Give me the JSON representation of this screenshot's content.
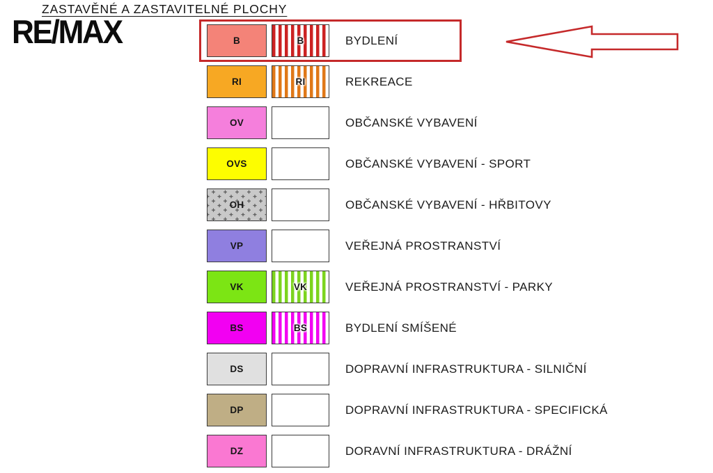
{
  "title": "ZASTAVĚNÉ A ZASTAVITELNÉ PLOCHY",
  "logo": {
    "text": "RE/MAX",
    "color": "#0c0c0c"
  },
  "legend": {
    "rows": [
      {
        "code": "B",
        "label": "BYDLENÍ",
        "solid_color": "#f48378",
        "highlighted": true,
        "swatch2": {
          "type": "stripes",
          "color": "#cc2222",
          "code": "B"
        }
      },
      {
        "code": "RI",
        "label": "REKREACE",
        "solid_color": "#f7a823",
        "highlighted": false,
        "swatch2": {
          "type": "stripes",
          "color": "#e07818",
          "code": "RI"
        }
      },
      {
        "code": "OV",
        "label": "OBČANSKÉ VYBAVENÍ",
        "solid_color": "#f57fdc",
        "highlighted": false,
        "swatch2": {
          "type": "empty"
        }
      },
      {
        "code": "OVS",
        "label": "OBČANSKÉ VYBAVENÍ - SPORT",
        "solid_color": "#fdfd00",
        "highlighted": false,
        "swatch2": {
          "type": "empty"
        }
      },
      {
        "code": "OH",
        "label": "OBČANSKÉ VYBAVENÍ - HŘBITOVY",
        "solid_color": "#c9c9c9",
        "solid_pattern": "plus-crosses",
        "pattern_color": "#5a5a5a",
        "highlighted": false,
        "swatch2": {
          "type": "empty"
        }
      },
      {
        "code": "VP",
        "label": "VEŘEJNÁ PROSTRANSTVÍ",
        "solid_color": "#8f7fe0",
        "highlighted": false,
        "swatch2": {
          "type": "empty"
        }
      },
      {
        "code": "VK",
        "label": "VEŘEJNÁ PROSTRANSTVÍ - PARKY",
        "solid_color": "#7ce514",
        "highlighted": false,
        "swatch2": {
          "type": "stripes",
          "color": "#7cd41e",
          "code": "VK"
        }
      },
      {
        "code": "BS",
        "label": "BYDLENÍ SMÍŠENÉ",
        "solid_color": "#f200f2",
        "highlighted": false,
        "swatch2": {
          "type": "stripes",
          "color": "#f200f2",
          "code": "BS"
        }
      },
      {
        "code": "DS",
        "label": "DOPRAVNÍ INFRASTRUKTURA - SILNIČNÍ",
        "solid_color": "#e0e0e0",
        "highlighted": false,
        "swatch2": {
          "type": "empty"
        }
      },
      {
        "code": "DP",
        "label": "DOPRAVNÍ INFRASTRUKTURA - SPECIFICKÁ",
        "solid_color": "#bfae85",
        "highlighted": false,
        "swatch2": {
          "type": "empty"
        }
      },
      {
        "code": "DZ",
        "label": "DORAVNÍ INFRASTRUKTURA - DRÁŽNÍ",
        "solid_color": "#fa78d2",
        "highlighted": false,
        "swatch2": {
          "type": "empty"
        }
      }
    ]
  },
  "annotations": {
    "highlight_color": "#c5292a",
    "highlighted_row_code": "B",
    "arrow_direction": "left"
  }
}
